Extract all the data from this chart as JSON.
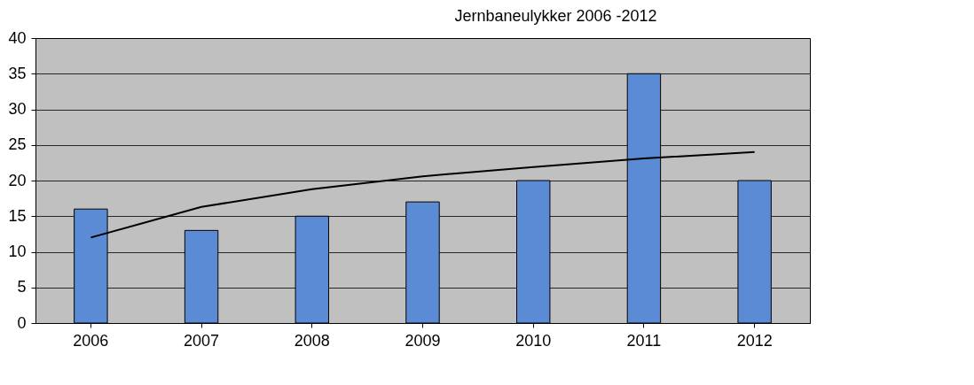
{
  "chart_data": {
    "type": "bar",
    "title": "Jernbaneulykker 2006 -2012",
    "categories": [
      "2006",
      "2007",
      "2008",
      "2009",
      "2010",
      "2011",
      "2012"
    ],
    "series": [
      {
        "color": "#5b8bd4",
        "values": [
          16,
          13,
          15,
          17,
          20,
          35,
          20
        ]
      },
      {
        "type": "line",
        "color": "#000000",
        "values": [
          12,
          16.3,
          18.8,
          20.6,
          21.9,
          23.1,
          24
        ]
      }
    ],
    "ylim": [
      0,
      40
    ],
    "yticks": [
      0,
      5,
      10,
      15,
      20,
      25,
      30,
      35,
      40
    ],
    "grid": "y"
  }
}
